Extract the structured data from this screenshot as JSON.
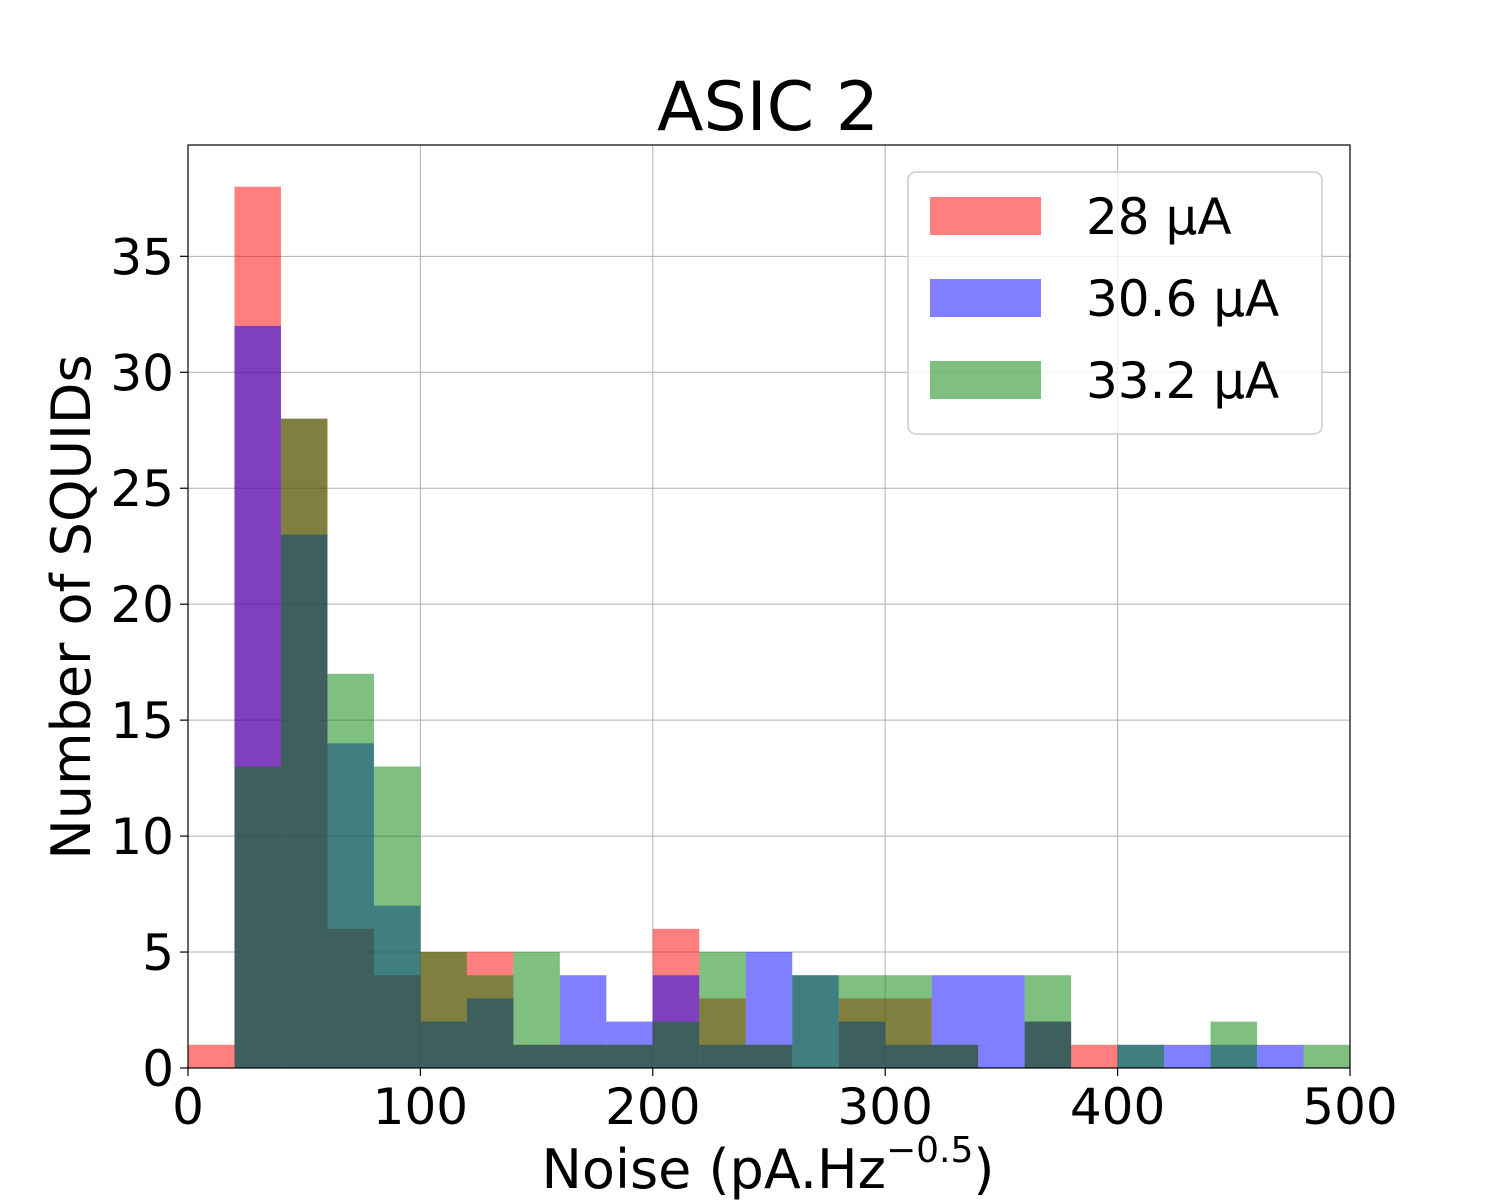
{
  "chart_data": {
    "type": "bar",
    "title": "ASIC 2",
    "xlabel": "Noise (pA.Hz",
    "xlabel_sup": "−0.5",
    "xlabel_end": ")",
    "ylabel": "Number of SQUIDs",
    "xlim": [
      0,
      500
    ],
    "ylim": [
      0,
      39.8
    ],
    "xticks": [
      0,
      100,
      200,
      300,
      400,
      500
    ],
    "yticks": [
      0,
      5,
      10,
      15,
      20,
      25,
      30,
      35
    ],
    "grid": true,
    "legend_position": "top-right",
    "bin_edges": [
      0,
      20,
      40,
      60,
      80,
      100,
      120,
      140,
      160,
      180,
      200,
      220,
      240,
      260,
      280,
      300,
      320,
      340,
      360,
      380,
      400,
      420,
      440,
      460,
      480,
      500
    ],
    "series": [
      {
        "name": "28 µA",
        "color": "#ff0000",
        "values": [
          1,
          38,
          28,
          6,
          4,
          5,
          5,
          1,
          1,
          1,
          6,
          3,
          1,
          0,
          3,
          3,
          1,
          0,
          2,
          1,
          0,
          0,
          0,
          0,
          0
        ]
      },
      {
        "name": "30.6 µA",
        "color": "#0000ff",
        "values": [
          0,
          32,
          23,
          14,
          7,
          2,
          3,
          1,
          4,
          2,
          4,
          1,
          5,
          4,
          2,
          1,
          4,
          4,
          2,
          0,
          1,
          1,
          1,
          1,
          0
        ]
      },
      {
        "name": "33.2 µA",
        "color": "#008000",
        "values": [
          0,
          13,
          28,
          17,
          13,
          5,
          4,
          5,
          1,
          1,
          2,
          5,
          1,
          4,
          4,
          4,
          1,
          0,
          4,
          0,
          1,
          0,
          2,
          0,
          1
        ]
      }
    ]
  }
}
